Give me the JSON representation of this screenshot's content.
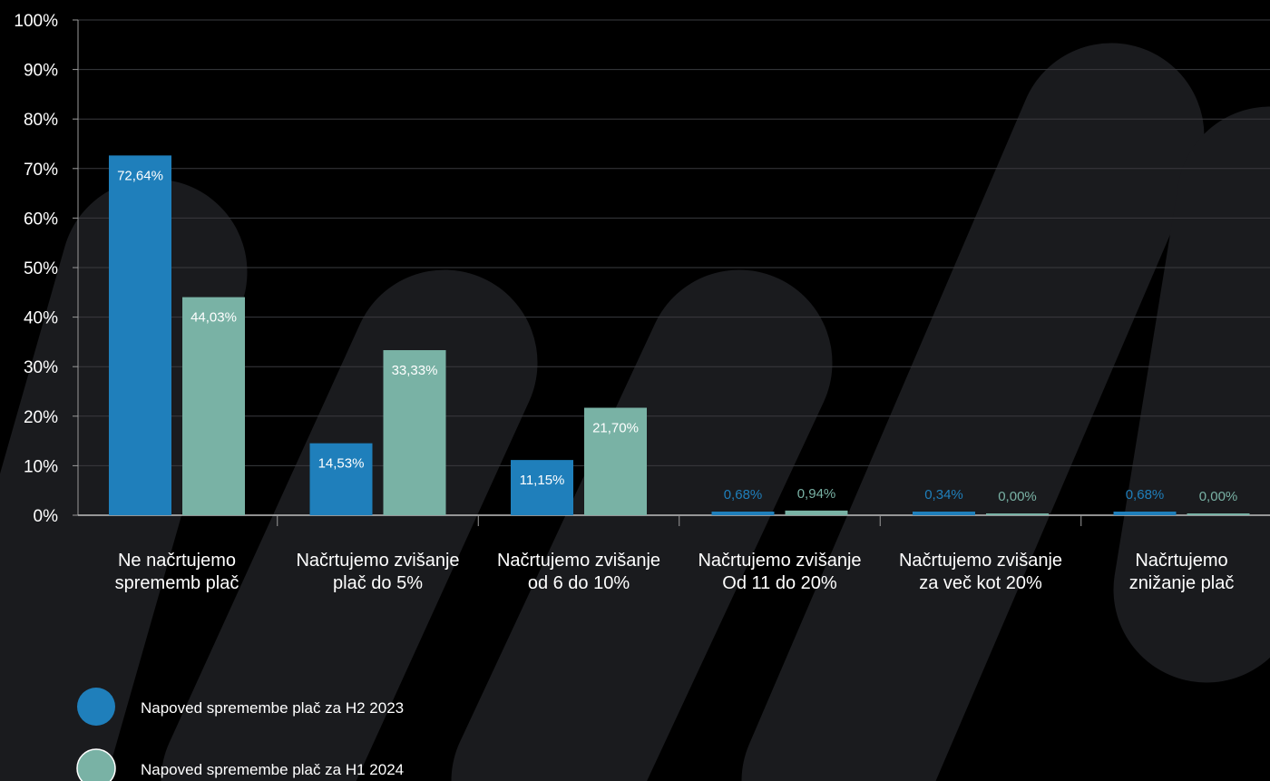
{
  "chart_data": {
    "type": "bar",
    "categories": [
      [
        "Ne načrtujemo",
        "sprememb plač"
      ],
      [
        "Načrtujemo zvišanje",
        "plač do 5%"
      ],
      [
        "Načrtujemo zvišanje",
        "od 6 do 10%"
      ],
      [
        "Načrtujemo zvišanje",
        "Od 11 do 20%"
      ],
      [
        "Načrtujemo zvišanje",
        "za več kot 20%"
      ],
      [
        "Načrtujemo",
        "znižanje plač"
      ]
    ],
    "series": [
      {
        "name": "Napoved spremembe plač za H2 2023",
        "color": "#1f7fbb",
        "values": [
          72.64,
          14.53,
          11.15,
          0.68,
          0.34,
          0.68
        ],
        "labels": [
          "72,64%",
          "14,53%",
          "11,15%",
          "0,68%",
          "0,34%",
          "0,68%"
        ]
      },
      {
        "name": "Napoved spremembe plač za H1 2024",
        "color": "#79b2a5",
        "values": [
          44.03,
          33.33,
          21.7,
          0.94,
          0.0,
          0.0
        ],
        "labels": [
          "44,03%",
          "33,33%",
          "21,70%",
          "0,94%",
          "0,00%",
          "0,00%"
        ]
      }
    ],
    "y_ticks": [
      "0%",
      "10%",
      "20%",
      "30%",
      "40%",
      "50%",
      "60%",
      "70%",
      "80%",
      "90%",
      "100%"
    ],
    "ylim": [
      0,
      100
    ],
    "grid": true,
    "legend": "bottom-left",
    "background": "#000000",
    "decor_color": "#1a1b1e"
  }
}
